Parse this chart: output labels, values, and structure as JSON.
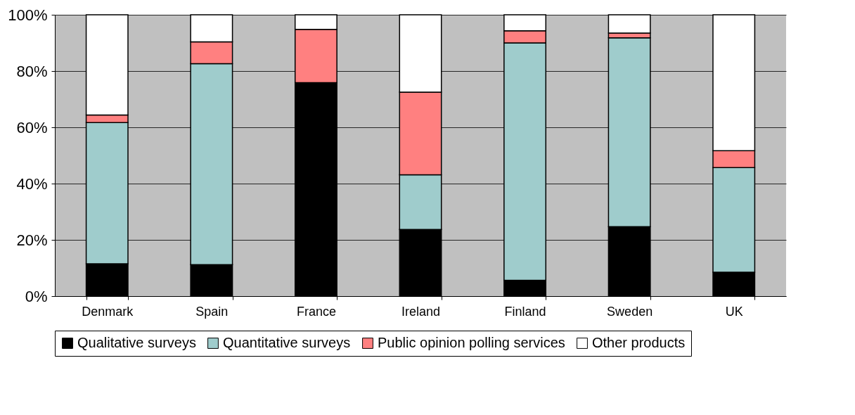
{
  "chart_data": {
    "type": "bar",
    "stacked": true,
    "categories": [
      "Denmark",
      "Spain",
      "France",
      "Ireland",
      "Finland",
      "Sweden",
      "UK"
    ],
    "series": [
      {
        "name": "Qualitative surveys",
        "color": "#000000",
        "values": [
          11.5,
          11.2,
          75.9,
          23.7,
          5.6,
          24.7,
          8.5
        ]
      },
      {
        "name": "Quantitative surveys",
        "color": "#9fcccc",
        "values": [
          50.2,
          71.4,
          0,
          19.4,
          84.4,
          67.1,
          37.2
        ]
      },
      {
        "name": "Public opinion polling services",
        "color": "#ff8080",
        "values": [
          2.7,
          7.8,
          18.9,
          29.4,
          4.3,
          1.7,
          6.0
        ]
      },
      {
        "name": "Other products",
        "color": "#ffffff",
        "values": [
          35.6,
          9.6,
          5.2,
          27.5,
          5.7,
          6.5,
          48.3
        ]
      }
    ],
    "ylim": [
      0,
      100
    ],
    "yticks": [
      {
        "value": 0,
        "label": "0%"
      },
      {
        "value": 20,
        "label": "20%"
      },
      {
        "value": 40,
        "label": "40%"
      },
      {
        "value": 60,
        "label": "60%"
      },
      {
        "value": 80,
        "label": "80%"
      },
      {
        "value": 100,
        "label": "100%"
      }
    ],
    "grid": "y",
    "legend": "bottom"
  }
}
